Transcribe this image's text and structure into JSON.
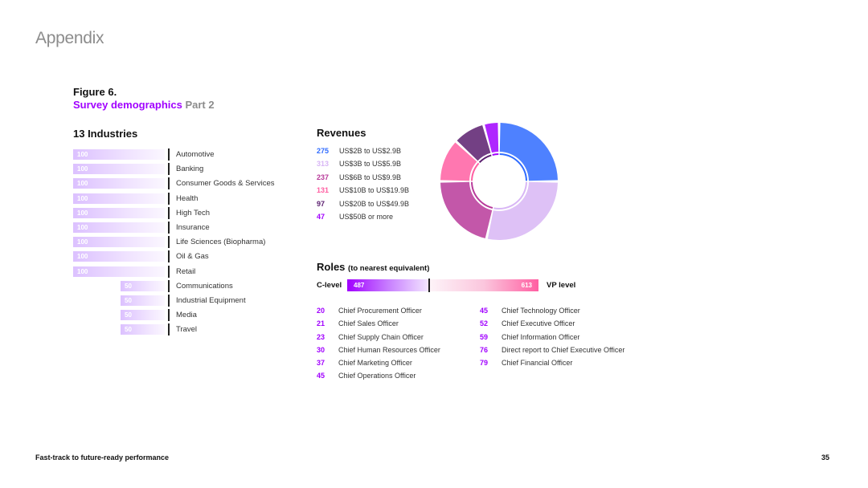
{
  "header": {
    "appendix": "Appendix"
  },
  "figure": {
    "label": "Figure 6.",
    "title_main": "Survey demographics",
    "title_part": "Part 2"
  },
  "industries": {
    "heading": "13 Industries",
    "items": [
      {
        "value": 100,
        "label": "Automotive"
      },
      {
        "value": 100,
        "label": "Banking"
      },
      {
        "value": 100,
        "label": "Consumer Goods & Services"
      },
      {
        "value": 100,
        "label": "Health"
      },
      {
        "value": 100,
        "label": "High Tech"
      },
      {
        "value": 100,
        "label": "Insurance"
      },
      {
        "value": 100,
        "label": "Life Sciences (Biopharma)"
      },
      {
        "value": 100,
        "label": "Oil & Gas"
      },
      {
        "value": 100,
        "label": "Retail"
      },
      {
        "value": 50,
        "label": "Communications"
      },
      {
        "value": 50,
        "label": "Industrial Equipment"
      },
      {
        "value": 50,
        "label": "Media"
      },
      {
        "value": 50,
        "label": "Travel"
      }
    ]
  },
  "revenues": {
    "heading": "Revenues",
    "items": [
      {
        "value": 275,
        "label": "US$2B to US$2.9B",
        "color": "#2f6bff"
      },
      {
        "value": 313,
        "label": "US$3B to US$5.9B",
        "color": "#d8b6f5"
      },
      {
        "value": 237,
        "label": "US$6B to US$9.9B",
        "color": "#b83a9a"
      },
      {
        "value": 131,
        "label": "US$10B to US$19.9B",
        "color": "#ff5fa2"
      },
      {
        "value": 97,
        "label": "US$20B to US$49.9B",
        "color": "#5a1e6e"
      },
      {
        "value": 47,
        "label": "US$50B or more",
        "color": "#a100ff"
      }
    ]
  },
  "roles": {
    "heading": "Roles",
    "heading_note": "(to nearest equivalent)",
    "c_level_label": "C-level",
    "c_level_value": 487,
    "vp_level_label": "VP level",
    "vp_level_value": 613,
    "left_column": [
      {
        "value": 20,
        "label": "Chief Procurement Officer"
      },
      {
        "value": 21,
        "label": "Chief Sales Officer"
      },
      {
        "value": 23,
        "label": "Chief Supply Chain Officer"
      },
      {
        "value": 30,
        "label": "Chief Human Resources Officer"
      },
      {
        "value": 37,
        "label": "Chief Marketing Officer"
      },
      {
        "value": 45,
        "label": "Chief Operations Officer"
      }
    ],
    "right_column": [
      {
        "value": 45,
        "label": "Chief Technology Officer"
      },
      {
        "value": 52,
        "label": "Chief Executive Officer"
      },
      {
        "value": 59,
        "label": "Chief Information Officer"
      },
      {
        "value": 76,
        "label": "Direct report to Chief Executive Officer"
      },
      {
        "value": 79,
        "label": "Chief Financial Officer"
      }
    ]
  },
  "footer": {
    "title": "Fast-track to future-ready performance",
    "page": "35"
  }
}
